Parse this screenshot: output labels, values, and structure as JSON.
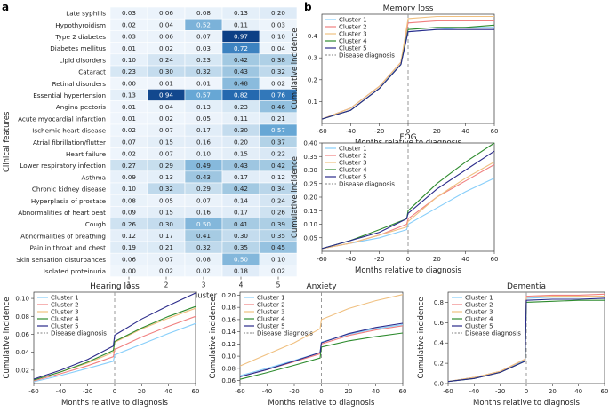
{
  "panel_labels": {
    "a": "a",
    "b": "b"
  },
  "heatmap": {
    "ylabel": "Clinical features",
    "xlabel": "Cluster",
    "clusters": [
      "1",
      "2",
      "3",
      "4",
      "5"
    ],
    "rows": [
      {
        "feature": "Late syphilis",
        "values": [
          "0.03",
          "0.06",
          "0.08",
          "0.13",
          "0.20"
        ]
      },
      {
        "feature": "Hypothyroidism",
        "values": [
          "0.02",
          "0.04",
          "0.52",
          "0.11",
          "0.03"
        ]
      },
      {
        "feature": "Type 2 diabetes",
        "values": [
          "0.03",
          "0.06",
          "0.07",
          "0.97",
          "0.10"
        ]
      },
      {
        "feature": "Diabetes mellitus",
        "values": [
          "0.01",
          "0.02",
          "0.03",
          "0.72",
          "0.04"
        ]
      },
      {
        "feature": "Lipid disorders",
        "values": [
          "0.10",
          "0.24",
          "0.23",
          "0.42",
          "0.38"
        ]
      },
      {
        "feature": "Cataract",
        "values": [
          "0.23",
          "0.30",
          "0.32",
          "0.43",
          "0.32"
        ]
      },
      {
        "feature": "Retinal disorders",
        "values": [
          "0.00",
          "0.01",
          "0.01",
          "0.48",
          "0.02"
        ]
      },
      {
        "feature": "Essential hypertension",
        "values": [
          "0.13",
          "0.94",
          "0.57",
          "0.82",
          "0.76"
        ]
      },
      {
        "feature": "Angina pectoris",
        "values": [
          "0.01",
          "0.04",
          "0.13",
          "0.23",
          "0.46"
        ]
      },
      {
        "feature": "Acute myocardial infarction",
        "values": [
          "0.01",
          "0.02",
          "0.05",
          "0.11",
          "0.21"
        ]
      },
      {
        "feature": "Ischemic heart disease",
        "values": [
          "0.02",
          "0.07",
          "0.17",
          "0.30",
          "0.57"
        ]
      },
      {
        "feature": "Atrial fibrillation/flutter",
        "values": [
          "0.07",
          "0.15",
          "0.16",
          "0.20",
          "0.37"
        ]
      },
      {
        "feature": "Heart failure",
        "values": [
          "0.02",
          "0.07",
          "0.10",
          "0.15",
          "0.22"
        ]
      },
      {
        "feature": "Lower respiratory infection",
        "values": [
          "0.27",
          "0.29",
          "0.49",
          "0.43",
          "0.42"
        ]
      },
      {
        "feature": "Asthma",
        "values": [
          "0.09",
          "0.13",
          "0.43",
          "0.17",
          "0.12"
        ]
      },
      {
        "feature": "Chronic kidney disease",
        "values": [
          "0.10",
          "0.32",
          "0.29",
          "0.42",
          "0.34"
        ]
      },
      {
        "feature": "Hyperplasia of prostate",
        "values": [
          "0.08",
          "0.05",
          "0.07",
          "0.14",
          "0.24"
        ]
      },
      {
        "feature": "Abnormalities of heart beat",
        "values": [
          "0.09",
          "0.15",
          "0.16",
          "0.17",
          "0.26"
        ]
      },
      {
        "feature": "Cough",
        "values": [
          "0.26",
          "0.30",
          "0.50",
          "0.41",
          "0.39"
        ]
      },
      {
        "feature": "Abnormalities of breathing",
        "values": [
          "0.12",
          "0.17",
          "0.41",
          "0.30",
          "0.35"
        ]
      },
      {
        "feature": "Pain in throat and chest",
        "values": [
          "0.19",
          "0.21",
          "0.32",
          "0.35",
          "0.45"
        ]
      },
      {
        "feature": "Skin sensation disturbances",
        "values": [
          "0.06",
          "0.07",
          "0.08",
          "0.50",
          "0.10"
        ]
      },
      {
        "feature": "Isolated proteinuria",
        "values": [
          "0.00",
          "0.02",
          "0.02",
          "0.18",
          "0.02"
        ]
      }
    ]
  },
  "series_colors": {
    "Cluster 1": "#87cefa",
    "Cluster 2": "#f08080",
    "Cluster 3": "#f0c080",
    "Cluster 4": "#2e8b2e",
    "Cluster 5": "#2a2a8a",
    "Disease diagnosis": "#999999"
  },
  "chart_data": [
    {
      "type": "line",
      "title": "Memory loss",
      "xlabel": "Months relative to diagnosis",
      "ylabel": "Cumulative incidence",
      "xlim": [
        -60,
        60
      ],
      "ylim": [
        0,
        0.5
      ],
      "xticks": [
        -60,
        -40,
        -20,
        0,
        20,
        40,
        60
      ],
      "yticks": [
        0.1,
        0.2,
        0.3,
        0.4
      ],
      "x": [
        -60,
        -40,
        -20,
        -5,
        0,
        20,
        40,
        60
      ],
      "series": [
        {
          "name": "Cluster 1",
          "values": [
            0.02,
            0.07,
            0.17,
            0.27,
            0.42,
            0.43,
            0.44,
            0.44
          ]
        },
        {
          "name": "Cluster 2",
          "values": [
            0.02,
            0.07,
            0.17,
            0.28,
            0.46,
            0.47,
            0.47,
            0.47
          ]
        },
        {
          "name": "Cluster 3",
          "values": [
            0.02,
            0.07,
            0.17,
            0.28,
            0.48,
            0.49,
            0.49,
            0.49
          ]
        },
        {
          "name": "Cluster 4",
          "values": [
            0.02,
            0.06,
            0.16,
            0.27,
            0.43,
            0.44,
            0.44,
            0.45
          ]
        },
        {
          "name": "Cluster 5",
          "values": [
            0.02,
            0.06,
            0.16,
            0.27,
            0.42,
            0.43,
            0.43,
            0.43
          ]
        }
      ],
      "legend": [
        "Cluster 1",
        "Cluster 2",
        "Cluster 3",
        "Cluster 4",
        "Cluster 5",
        "Disease diagnosis"
      ]
    },
    {
      "type": "line",
      "title": "FOG",
      "xlabel": "Months relative to diagnosis",
      "ylabel": "Cumulative incidence",
      "xlim": [
        -60,
        60
      ],
      "ylim": [
        0,
        0.4
      ],
      "xticks": [
        -60,
        -40,
        -20,
        0,
        20,
        40,
        60
      ],
      "yticks": [
        0.05,
        0.1,
        0.15,
        0.2,
        0.25,
        0.3,
        0.35,
        0.4
      ],
      "x": [
        -60,
        -40,
        -20,
        -1,
        0,
        20,
        40,
        60
      ],
      "series": [
        {
          "name": "Cluster 1",
          "values": [
            0.01,
            0.03,
            0.05,
            0.08,
            0.1,
            0.16,
            0.22,
            0.27
          ]
        },
        {
          "name": "Cluster 2",
          "values": [
            0.01,
            0.03,
            0.06,
            0.1,
            0.12,
            0.2,
            0.26,
            0.32
          ]
        },
        {
          "name": "Cluster 3",
          "values": [
            0.01,
            0.03,
            0.06,
            0.09,
            0.11,
            0.2,
            0.27,
            0.33
          ]
        },
        {
          "name": "Cluster 4",
          "values": [
            0.01,
            0.04,
            0.08,
            0.12,
            0.15,
            0.25,
            0.33,
            0.4
          ]
        },
        {
          "name": "Cluster 5",
          "values": [
            0.01,
            0.04,
            0.07,
            0.12,
            0.14,
            0.23,
            0.3,
            0.37
          ]
        }
      ],
      "legend": [
        "Cluster 1",
        "Cluster 2",
        "Cluster 3",
        "Cluster 4",
        "Cluster 5",
        "Disease diagnosis"
      ]
    },
    {
      "type": "line",
      "title": "Hearing loss",
      "xlabel": "Months relative to diagnosis",
      "ylabel": "Cumulative incidence",
      "xlim": [
        -60,
        60
      ],
      "ylim": [
        0.005,
        0.107
      ],
      "xticks": [
        -60,
        -40,
        -20,
        0,
        20,
        40,
        60
      ],
      "yticks": [
        0.02,
        0.04,
        0.06,
        0.08,
        0.1
      ],
      "x": [
        -60,
        -40,
        -20,
        -1,
        0,
        20,
        40,
        60
      ],
      "series": [
        {
          "name": "Cluster 1",
          "values": [
            0.007,
            0.014,
            0.022,
            0.03,
            0.037,
            0.049,
            0.061,
            0.072
          ]
        },
        {
          "name": "Cluster 2",
          "values": [
            0.008,
            0.016,
            0.025,
            0.035,
            0.043,
            0.057,
            0.069,
            0.08
          ]
        },
        {
          "name": "Cluster 3",
          "values": [
            0.009,
            0.018,
            0.028,
            0.04,
            0.051,
            0.066,
            0.078,
            0.089
          ]
        },
        {
          "name": "Cluster 4",
          "values": [
            0.009,
            0.018,
            0.029,
            0.042,
            0.052,
            0.067,
            0.08,
            0.091
          ]
        },
        {
          "name": "Cluster 5",
          "values": [
            0.01,
            0.02,
            0.032,
            0.047,
            0.059,
            0.077,
            0.092,
            0.106
          ]
        }
      ],
      "legend": [
        "Cluster 1",
        "Cluster 2",
        "Cluster 3",
        "Cluster 4",
        "Cluster 5",
        "Disease diagnosis"
      ]
    },
    {
      "type": "line",
      "title": "Anxiety",
      "xlabel": "Months relative to diagnosis",
      "ylabel": "Cumulative incidence",
      "xlim": [
        -60,
        60
      ],
      "ylim": [
        0.055,
        0.205
      ],
      "xticks": [
        -60,
        -40,
        -20,
        0,
        20,
        40,
        60
      ],
      "yticks": [
        0.06,
        0.08,
        0.1,
        0.12,
        0.14,
        0.16,
        0.18,
        0.2
      ],
      "x": [
        -60,
        -40,
        -20,
        -1,
        0,
        20,
        40,
        60
      ],
      "series": [
        {
          "name": "Cluster 1",
          "values": [
            0.068,
            0.08,
            0.093,
            0.106,
            0.123,
            0.136,
            0.145,
            0.152
          ]
        },
        {
          "name": "Cluster 2",
          "values": [
            0.066,
            0.078,
            0.091,
            0.104,
            0.12,
            0.134,
            0.143,
            0.15
          ]
        },
        {
          "name": "Cluster 3",
          "values": [
            0.084,
            0.103,
            0.122,
            0.145,
            0.16,
            0.178,
            0.191,
            0.201
          ]
        },
        {
          "name": "Cluster 4",
          "values": [
            0.062,
            0.073,
            0.085,
            0.097,
            0.115,
            0.125,
            0.132,
            0.138
          ]
        },
        {
          "name": "Cluster 5",
          "values": [
            0.066,
            0.078,
            0.092,
            0.106,
            0.122,
            0.137,
            0.147,
            0.154
          ]
        }
      ],
      "legend": [
        "Cluster 1",
        "Cluster 2",
        "Cluster 3",
        "Cluster 4",
        "Cluster 5",
        "Disease diagnosis"
      ]
    },
    {
      "type": "line",
      "title": "Dementia",
      "xlabel": "Months relative to diagnosis",
      "ylabel": "Cumulative incidence",
      "xlim": [
        -60,
        60
      ],
      "ylim": [
        0,
        0.9
      ],
      "xticks": [
        -60,
        -40,
        -20,
        0,
        20,
        40,
        60
      ],
      "yticks": [
        0.0,
        0.2,
        0.4,
        0.6,
        0.8
      ],
      "x": [
        -60,
        -40,
        -20,
        -1,
        0,
        20,
        40,
        60
      ],
      "series": [
        {
          "name": "Cluster 1",
          "values": [
            0.02,
            0.06,
            0.12,
            0.23,
            0.84,
            0.85,
            0.85,
            0.86
          ]
        },
        {
          "name": "Cluster 2",
          "values": [
            0.02,
            0.06,
            0.12,
            0.24,
            0.86,
            0.87,
            0.87,
            0.88
          ]
        },
        {
          "name": "Cluster 3",
          "values": [
            0.02,
            0.06,
            0.12,
            0.24,
            0.85,
            0.86,
            0.86,
            0.86
          ]
        },
        {
          "name": "Cluster 4",
          "values": [
            0.02,
            0.05,
            0.11,
            0.22,
            0.8,
            0.81,
            0.82,
            0.82
          ]
        },
        {
          "name": "Cluster 5",
          "values": [
            0.02,
            0.05,
            0.11,
            0.22,
            0.82,
            0.83,
            0.83,
            0.84
          ]
        }
      ],
      "legend": [
        "Cluster 1",
        "Cluster 2",
        "Cluster 3",
        "Cluster 4",
        "Cluster 5",
        "Disease diagnosis"
      ]
    }
  ]
}
